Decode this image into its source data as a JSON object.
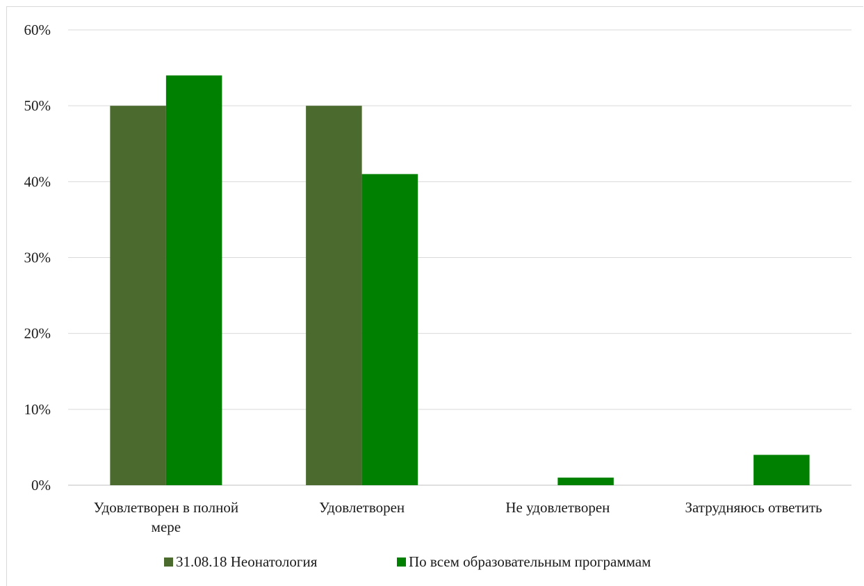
{
  "chart_data": {
    "type": "bar",
    "categories": [
      [
        "Удовлетворен в полной",
        "мере"
      ],
      [
        "Удовлетворен"
      ],
      [
        "Не удовлетворен"
      ],
      [
        "Затрудняюсь ответить"
      ]
    ],
    "series": [
      {
        "name": "31.08.18 Неонатология",
        "values": [
          50,
          50,
          0,
          0
        ],
        "color": "#4a6a2e"
      },
      {
        "name": "По всем образовательным программам",
        "values": [
          54,
          41,
          1,
          4
        ],
        "color": "#008000"
      }
    ],
    "title": "",
    "xlabel": "",
    "ylabel": "",
    "ylim": [
      0,
      60
    ],
    "yticks": [
      "0%",
      "10%",
      "20%",
      "30%",
      "40%",
      "50%",
      "60%"
    ],
    "grid": true,
    "legend_position": "bottom"
  },
  "colors": {
    "grid": "#d9d9d9",
    "axis": "#bfbfbf",
    "text": "#1a1a1a"
  }
}
